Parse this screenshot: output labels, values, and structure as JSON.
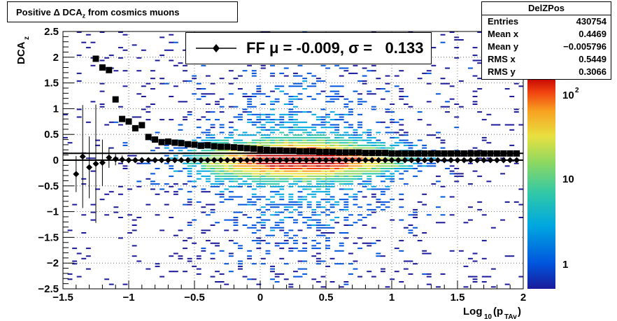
{
  "title": {
    "text_prefix": "Positive Δ DCA",
    "text_sub": "z",
    "text_suffix": " from cosmics muons"
  },
  "stats_box": {
    "name": "DelZPos",
    "rows": [
      {
        "label": "Entries",
        "value": "430754"
      },
      {
        "label": "Mean x",
        "value": "0.4469"
      },
      {
        "label": "Mean y",
        "value": "−0.005796"
      },
      {
        "label": "RMS x",
        "value": "0.5449"
      },
      {
        "label": "RMS y",
        "value": "0.3066"
      }
    ]
  },
  "legend": {
    "entry": "FF μ = -0.009, σ =   0.133"
  },
  "axes": {
    "ylabel_main": "DCA",
    "ylabel_sub": "z",
    "xlabel_main": "Log",
    "xlabel_sub1": "10",
    "xlabel_mid": "(p",
    "xlabel_sub2": "TAv",
    "xlabel_end": ")",
    "xticks": [
      "−1.5",
      "−1",
      "−0.5",
      "0",
      "0.5",
      "1",
      "1.5",
      "2"
    ],
    "yticks": [
      "−2.5",
      "−2",
      "−1.5",
      "−1",
      "−0.5",
      "0",
      "0.5",
      "1",
      "1.5",
      "2",
      "2.5"
    ],
    "zticks": [
      "1",
      "10",
      "10"
    ],
    "zsup": "2"
  },
  "chart_data": {
    "type": "heatmap",
    "title": "Positive Δ DCA z from cosmics muons",
    "xlabel": "Log10(pTAv)",
    "ylabel": "DCAz",
    "xlim": [
      -1.5,
      2.0
    ],
    "ylim": [
      -2.5,
      2.5
    ],
    "zscale": "log",
    "grid": true,
    "legend_position": "top-center",
    "colorscale": [
      "#1a1a9a",
      "#0055dd",
      "#00a8e0",
      "#30c8a8",
      "#90d860",
      "#e8e040",
      "#f8a020",
      "#f04010",
      "#c00000"
    ],
    "series": [
      {
        "name": "FF μ = -0.009, σ =   0.133",
        "marker": "diamond",
        "x": [
          -1.4,
          -1.35,
          -1.3,
          -1.25,
          -1.2,
          -1.15,
          -1.1,
          -1.05,
          -1.0,
          -0.95,
          -0.9,
          -0.85,
          -0.8,
          -0.75,
          -0.7,
          -0.65,
          -0.6,
          -0.55,
          -0.5,
          -0.45,
          -0.4,
          -0.35,
          -0.3,
          -0.25,
          -0.2,
          -0.15,
          -0.1,
          -0.05,
          0.0,
          0.05,
          0.1,
          0.15,
          0.2,
          0.25,
          0.3,
          0.35,
          0.4,
          0.45,
          0.5,
          0.55,
          0.6,
          0.65,
          0.7,
          0.75,
          0.8,
          0.85,
          0.9,
          0.95,
          1.0,
          1.05,
          1.1,
          1.15,
          1.2,
          1.25,
          1.3,
          1.35,
          1.4,
          1.45,
          1.5,
          1.55,
          1.6,
          1.65,
          1.7,
          1.75,
          1.8,
          1.85,
          1.9,
          1.95
        ],
        "y": [
          -0.27,
          0.07,
          -0.14,
          -0.07,
          -0.05,
          0.05,
          0.02,
          0.01,
          0.0,
          0.0,
          0.0,
          0.0,
          0.0,
          0.0,
          0.0,
          0.0,
          0.0,
          0.0,
          0.0,
          0.0,
          0.0,
          0.0,
          0.0,
          0.0,
          0.0,
          0.0,
          0.0,
          0.0,
          0.0,
          0.0,
          0.0,
          0.0,
          0.0,
          0.0,
          0.0,
          0.0,
          0.0,
          0.0,
          0.0,
          0.0,
          0.0,
          0.0,
          0.0,
          0.0,
          0.0,
          0.0,
          0.0,
          0.0,
          0.0,
          0.0,
          0.0,
          0.0,
          0.0,
          0.0,
          0.0,
          0.0,
          0.0,
          0.0,
          0.0,
          0.0,
          0.0,
          0.0,
          0.0,
          0.0,
          0.0,
          0.0,
          0.0,
          0.0
        ],
        "yerr": [
          0.35,
          1.0,
          0.6,
          1.15,
          0.45,
          0.2,
          0.12,
          0.08,
          0.05,
          0.04,
          0.03,
          0.02,
          0.02,
          0.02,
          0.02,
          0.02,
          0.02,
          0.02,
          0.02,
          0.02,
          0.02,
          0.02,
          0.02,
          0.02,
          0.02,
          0.02,
          0.02,
          0.02,
          0.02,
          0.02,
          0.02,
          0.02,
          0.02,
          0.02,
          0.02,
          0.02,
          0.02,
          0.02,
          0.02,
          0.02,
          0.02,
          0.02,
          0.02,
          0.02,
          0.02,
          0.02,
          0.02,
          0.02,
          0.02,
          0.02,
          0.02,
          0.02,
          0.02,
          0.02,
          0.02,
          0.02,
          0.02,
          0.02,
          0.02,
          0.02,
          0.02,
          0.02,
          0.02,
          0.02,
          0.02,
          0.02,
          0.02,
          0.02
        ]
      },
      {
        "name": "",
        "marker": "square",
        "x": [
          -1.25,
          -1.2,
          -1.15,
          -1.1,
          -1.05,
          -1.0,
          -0.95,
          -0.9,
          -0.85,
          -0.8,
          -0.75,
          -0.7,
          -0.65,
          -0.6,
          -0.55,
          -0.5,
          -0.45,
          -0.4,
          -0.35,
          -0.3,
          -0.25,
          -0.2,
          -0.15,
          -0.1,
          -0.05,
          0.0,
          0.05,
          0.1,
          0.15,
          0.2,
          0.25,
          0.3,
          0.35,
          0.4,
          0.45,
          0.5,
          0.55,
          0.6,
          0.65,
          0.7,
          0.75,
          0.8,
          0.85,
          0.9,
          0.95,
          1.0,
          1.05,
          1.1,
          1.15,
          1.2,
          1.25,
          1.3,
          1.35,
          1.4,
          1.45,
          1.5,
          1.55,
          1.6,
          1.65,
          1.7,
          1.75,
          1.8,
          1.85,
          1.9,
          1.95
        ],
        "y": [
          1.97,
          1.8,
          1.75,
          1.18,
          0.8,
          0.75,
          0.62,
          0.68,
          0.45,
          0.4,
          0.35,
          0.36,
          0.34,
          0.33,
          0.31,
          0.3,
          0.28,
          0.29,
          0.27,
          0.26,
          0.26,
          0.25,
          0.24,
          0.23,
          0.22,
          0.21,
          0.2,
          0.19,
          0.19,
          0.18,
          0.18,
          0.17,
          0.17,
          0.17,
          0.16,
          0.16,
          0.16,
          0.15,
          0.15,
          0.15,
          0.15,
          0.14,
          0.14,
          0.14,
          0.14,
          0.13,
          0.13,
          0.13,
          0.13,
          0.13,
          0.13,
          0.13,
          0.13,
          0.13,
          0.13,
          0.13,
          0.13,
          0.13,
          0.13,
          0.13,
          0.13,
          0.13,
          0.13,
          0.13,
          0.13
        ]
      }
    ],
    "hlines": [
      0.133,
      0.0
    ]
  }
}
